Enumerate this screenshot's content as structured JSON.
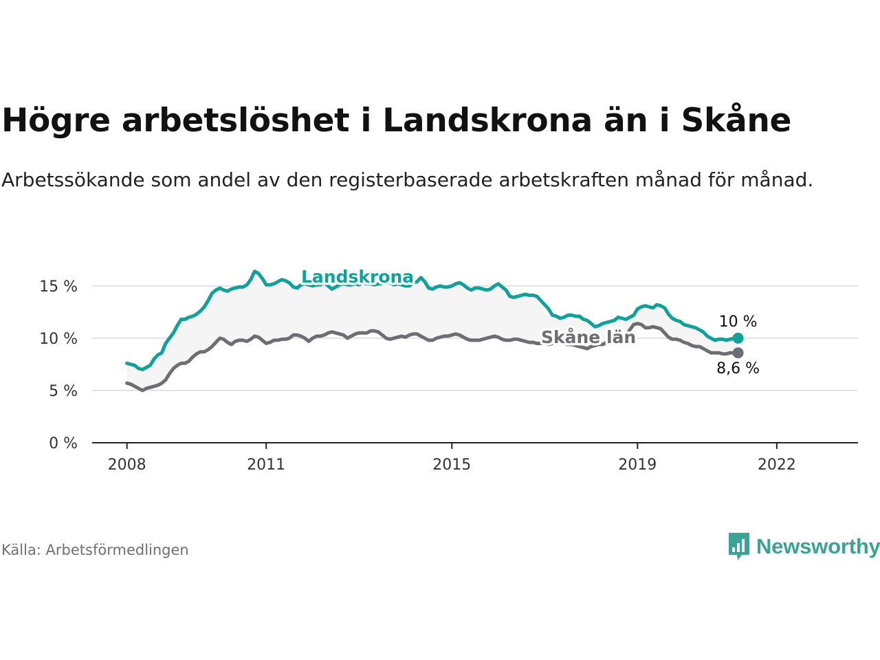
{
  "header": {
    "title": "Högre arbetslöshet i Landskrona än i Skåne",
    "subtitle": "Arbetssökande som andel av den registerbaserade arbetskraften månad för månad."
  },
  "footer": {
    "source": "Källa: Arbetsförmedlingen",
    "brand": "Newsworthy",
    "brand_icon": "bar-chart-icon",
    "brand_color": "#3aa394"
  },
  "chart_data": {
    "type": "line",
    "title": "Högre arbetslöshet i Landskrona än i Skåne",
    "xlabel": "",
    "ylabel": "",
    "x_start": 2008.0,
    "x_step_months": 1,
    "xlim": [
      2007.25,
      2023.75
    ],
    "ylim": [
      0,
      15
    ],
    "x_ticks": [
      2008,
      2011,
      2015,
      2019,
      2022
    ],
    "x_tick_labels": [
      "2008",
      "2011",
      "2015",
      "2019",
      "2022"
    ],
    "y_ticks": [
      0,
      5,
      10,
      15
    ],
    "y_tick_labels": [
      "0 %",
      "5 %",
      "10 %",
      "15 %"
    ],
    "grid": true,
    "series": [
      {
        "name": "Landskrona",
        "color": "#12a198",
        "end_label": "10 %",
        "values": [
          7.6,
          7.5,
          7.4,
          7.1,
          7.0,
          7.2,
          7.4,
          8.0,
          8.4,
          8.6,
          9.5,
          10.0,
          10.5,
          11.2,
          11.8,
          11.8,
          12.0,
          12.1,
          12.3,
          12.6,
          13.0,
          13.6,
          14.3,
          14.6,
          14.8,
          14.6,
          14.5,
          14.7,
          14.8,
          14.9,
          14.9,
          15.1,
          15.6,
          16.4,
          16.2,
          15.7,
          15.1,
          15.1,
          15.2,
          15.4,
          15.6,
          15.5,
          15.3,
          14.9,
          14.8,
          15.1,
          15.2,
          15.1,
          15.0,
          15.1,
          15.1,
          15.3,
          15.0,
          14.7,
          14.9,
          15.1,
          15.2,
          15.1,
          15.1,
          15.2,
          15.1,
          15.3,
          15.2,
          15.2,
          15.1,
          15.2,
          15.2,
          15.4,
          15.3,
          15.1,
          15.2,
          15.1,
          15.0,
          15.0,
          15.3,
          15.4,
          15.8,
          15.4,
          14.8,
          14.7,
          14.9,
          15.0,
          14.9,
          14.9,
          15.0,
          15.2,
          15.3,
          15.1,
          14.8,
          14.6,
          14.8,
          14.8,
          14.7,
          14.6,
          14.7,
          15.0,
          15.2,
          14.9,
          14.6,
          14.0,
          13.9,
          14.0,
          14.1,
          14.2,
          14.1,
          14.1,
          14.0,
          13.6,
          13.2,
          12.8,
          12.2,
          12.1,
          11.9,
          12.0,
          12.2,
          12.2,
          12.1,
          12.1,
          11.8,
          11.7,
          11.4,
          11.1,
          11.2,
          11.4,
          11.5,
          11.6,
          11.7,
          12.0,
          11.9,
          11.8,
          12.0,
          12.2,
          12.8,
          13.0,
          13.1,
          13.0,
          12.9,
          13.2,
          13.1,
          12.9,
          12.3,
          11.9,
          11.7,
          11.6,
          11.3,
          11.2,
          11.1,
          11.0,
          10.8,
          10.6,
          10.2,
          10.0,
          9.8,
          9.9,
          9.9,
          9.8,
          9.9,
          10.0,
          10.0
        ]
      },
      {
        "name": "Skåne län",
        "color": "#6e6d73",
        "end_label": "8,6 %",
        "values": [
          5.7,
          5.6,
          5.4,
          5.2,
          5.0,
          5.2,
          5.3,
          5.4,
          5.5,
          5.7,
          6.0,
          6.6,
          7.1,
          7.4,
          7.6,
          7.6,
          7.8,
          8.2,
          8.5,
          8.7,
          8.7,
          8.9,
          9.2,
          9.6,
          10.0,
          9.9,
          9.6,
          9.4,
          9.7,
          9.8,
          9.8,
          9.7,
          9.9,
          10.2,
          10.1,
          9.8,
          9.5,
          9.6,
          9.8,
          9.8,
          9.9,
          9.9,
          10.0,
          10.3,
          10.3,
          10.2,
          10.0,
          9.7,
          10.0,
          10.2,
          10.2,
          10.3,
          10.5,
          10.6,
          10.5,
          10.4,
          10.3,
          10.0,
          10.2,
          10.4,
          10.5,
          10.5,
          10.5,
          10.7,
          10.7,
          10.6,
          10.3,
          10.0,
          9.9,
          10.0,
          10.1,
          10.2,
          10.1,
          10.3,
          10.4,
          10.4,
          10.2,
          10.0,
          9.8,
          9.8,
          10.0,
          10.1,
          10.2,
          10.2,
          10.3,
          10.4,
          10.3,
          10.1,
          9.9,
          9.8,
          9.8,
          9.8,
          9.9,
          10.0,
          10.1,
          10.2,
          10.1,
          9.9,
          9.8,
          9.8,
          9.9,
          9.9,
          9.8,
          9.7,
          9.6,
          9.6,
          9.5,
          9.5,
          9.5,
          9.4,
          9.5,
          9.6,
          9.6,
          9.5,
          9.4,
          9.4,
          9.3,
          9.2,
          9.1,
          9.0,
          9.2,
          9.3,
          9.4,
          9.4,
          9.6,
          9.8,
          9.8,
          9.7,
          9.9,
          10.2,
          10.8,
          11.3,
          11.4,
          11.3,
          11.0,
          11.0,
          11.1,
          11.0,
          10.9,
          10.5,
          10.1,
          9.9,
          9.9,
          9.8,
          9.6,
          9.5,
          9.3,
          9.2,
          9.2,
          9.0,
          8.8,
          8.6,
          8.6,
          8.6,
          8.5,
          8.5,
          8.6,
          8.6,
          8.6
        ]
      }
    ]
  }
}
